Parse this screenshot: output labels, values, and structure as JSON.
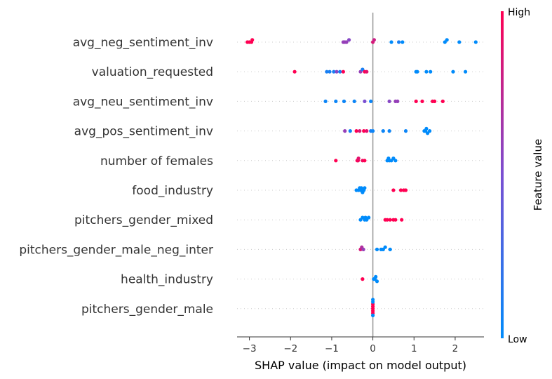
{
  "chart_data": {
    "type": "scatter",
    "title": "",
    "xlabel": "SHAP value (impact on model output)",
    "xlim": [
      -3.3,
      2.7
    ],
    "x_ticks": [
      -3,
      -2,
      -1,
      0,
      1,
      2
    ],
    "x_tick_labels": [
      "−3",
      "−2",
      "−1",
      "0",
      "1",
      "2"
    ],
    "colorbar": {
      "label": "Feature value",
      "high": "High",
      "low": "Low",
      "low_color": "#008bfb",
      "high_color": "#ff0052"
    },
    "features": [
      {
        "name": "avg_neg_sentiment_inv",
        "points": [
          [
            -3.05,
            1
          ],
          [
            -3.0,
            1
          ],
          [
            -2.95,
            1
          ],
          [
            -2.93,
            1
          ],
          [
            -0.72,
            0.6
          ],
          [
            -0.68,
            0.6
          ],
          [
            -0.64,
            0.6
          ],
          [
            -0.58,
            0.55
          ],
          [
            0.0,
            0.85
          ],
          [
            0.03,
            0.8
          ],
          [
            0.45,
            0
          ],
          [
            0.63,
            0.1
          ],
          [
            0.72,
            0
          ],
          [
            1.75,
            0
          ],
          [
            1.8,
            0
          ],
          [
            2.1,
            0
          ],
          [
            2.5,
            0
          ]
        ]
      },
      {
        "name": "valuation_requested",
        "points": [
          [
            -1.9,
            1
          ],
          [
            -1.12,
            0.1
          ],
          [
            -1.05,
            0.1
          ],
          [
            -0.95,
            0.1
          ],
          [
            -0.88,
            0.55
          ],
          [
            -0.8,
            0.1
          ],
          [
            -0.72,
            1
          ],
          [
            -0.3,
            0.6
          ],
          [
            -0.25,
            0.1
          ],
          [
            -0.2,
            1
          ],
          [
            -0.15,
            0.9
          ],
          [
            1.05,
            0
          ],
          [
            1.08,
            0
          ],
          [
            1.3,
            0
          ],
          [
            1.4,
            0
          ],
          [
            1.95,
            0
          ],
          [
            2.25,
            0
          ]
        ]
      },
      {
        "name": "avg_neu_sentiment_inv",
        "points": [
          [
            -1.15,
            0.05
          ],
          [
            -0.9,
            0.05
          ],
          [
            -0.7,
            0.05
          ],
          [
            -0.45,
            0.05
          ],
          [
            -0.2,
            0.5
          ],
          [
            -0.05,
            0.05
          ],
          [
            0.4,
            0.55
          ],
          [
            0.55,
            0.6
          ],
          [
            0.6,
            0.6
          ],
          [
            1.05,
            1
          ],
          [
            1.2,
            1
          ],
          [
            1.45,
            1
          ],
          [
            1.5,
            1
          ],
          [
            1.7,
            1
          ]
        ]
      },
      {
        "name": "avg_pos_sentiment_inv",
        "points": [
          [
            -0.68,
            0.6
          ],
          [
            -0.55,
            0.05
          ],
          [
            -0.4,
            1
          ],
          [
            -0.32,
            0.85
          ],
          [
            -0.22,
            1
          ],
          [
            -0.15,
            0.9
          ],
          [
            -0.05,
            0.1
          ],
          [
            0.0,
            0.05
          ],
          [
            0.25,
            0.05
          ],
          [
            0.4,
            0.05
          ],
          [
            0.8,
            0.05
          ],
          [
            1.25,
            0
          ],
          [
            1.28,
            0
          ],
          [
            1.3,
            0
          ],
          [
            1.33,
            0
          ],
          [
            1.38,
            0
          ]
        ]
      },
      {
        "name": "number of females",
        "points": [
          [
            -0.9,
            1
          ],
          [
            -0.38,
            1
          ],
          [
            -0.36,
            0.95
          ],
          [
            -0.35,
            0.9
          ],
          [
            -0.25,
            0.95
          ],
          [
            -0.2,
            1
          ],
          [
            0.35,
            0
          ],
          [
            0.38,
            0
          ],
          [
            0.4,
            0
          ],
          [
            0.45,
            0
          ],
          [
            0.5,
            0
          ],
          [
            0.55,
            0
          ]
        ]
      },
      {
        "name": "food_industry",
        "points": [
          [
            -0.4,
            0
          ],
          [
            -0.35,
            0
          ],
          [
            -0.32,
            0
          ],
          [
            -0.3,
            0
          ],
          [
            -0.28,
            0
          ],
          [
            -0.25,
            0
          ],
          [
            -0.22,
            0
          ],
          [
            -0.2,
            0
          ],
          [
            0.5,
            1
          ],
          [
            0.68,
            1
          ],
          [
            0.75,
            1
          ],
          [
            0.8,
            1
          ]
        ]
      },
      {
        "name": "pitchers_gender_mixed",
        "points": [
          [
            -0.3,
            0
          ],
          [
            -0.25,
            0
          ],
          [
            -0.2,
            0
          ],
          [
            -0.18,
            0
          ],
          [
            -0.15,
            0
          ],
          [
            -0.1,
            0
          ],
          [
            0.3,
            1
          ],
          [
            0.35,
            1
          ],
          [
            0.42,
            1
          ],
          [
            0.5,
            1
          ],
          [
            0.55,
            1
          ],
          [
            0.7,
            1
          ]
        ]
      },
      {
        "name": "pitchers_gender_male_neg_inter",
        "points": [
          [
            -0.3,
            0.85
          ],
          [
            -0.27,
            0.7
          ],
          [
            -0.23,
            0.6
          ],
          [
            0.1,
            0
          ],
          [
            0.2,
            0
          ],
          [
            0.25,
            0
          ],
          [
            0.3,
            0
          ],
          [
            0.42,
            0
          ]
        ]
      },
      {
        "name": "health_industry",
        "points": [
          [
            -0.25,
            1
          ],
          [
            0.02,
            0
          ],
          [
            0.05,
            0
          ],
          [
            0.07,
            0
          ],
          [
            0.1,
            0
          ]
        ]
      },
      {
        "name": "pitchers_gender_male",
        "points": [
          [
            0.0,
            1
          ],
          [
            0.0,
            1
          ],
          [
            0.0,
            1
          ],
          [
            0.0,
            1
          ],
          [
            0.0,
            1
          ],
          [
            0.0,
            0
          ],
          [
            0.0,
            0
          ],
          [
            0.0,
            0
          ]
        ]
      }
    ]
  }
}
